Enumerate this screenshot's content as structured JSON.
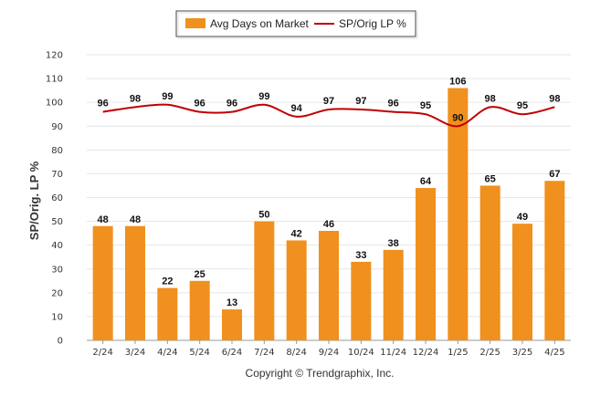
{
  "chart_data": {
    "type": "bar",
    "categories": [
      "2/24",
      "3/24",
      "4/24",
      "5/24",
      "6/24",
      "7/24",
      "8/24",
      "9/24",
      "10/24",
      "11/24",
      "12/24",
      "1/25",
      "2/25",
      "3/25",
      "4/25"
    ],
    "series": [
      {
        "name": "Avg Days on Market",
        "type": "bar",
        "color": "#F0901E",
        "values": [
          48,
          48,
          22,
          25,
          13,
          50,
          42,
          46,
          33,
          38,
          64,
          106,
          65,
          49,
          67
        ]
      },
      {
        "name": "SP/Orig LP %",
        "type": "line",
        "color": "#C00000",
        "values": [
          96,
          98,
          99,
          96,
          96,
          99,
          94,
          97,
          97,
          96,
          95,
          90,
          98,
          95,
          98
        ]
      }
    ],
    "ylabel": "SP/Orig. LP %",
    "ylim": [
      0,
      120
    ],
    "yticks": [
      0,
      10,
      20,
      30,
      40,
      50,
      60,
      70,
      80,
      90,
      100,
      110,
      120
    ],
    "grid": true,
    "legend": "top-center"
  },
  "footer": {
    "copyright": "Copyright © Trendgraphix, Inc."
  }
}
